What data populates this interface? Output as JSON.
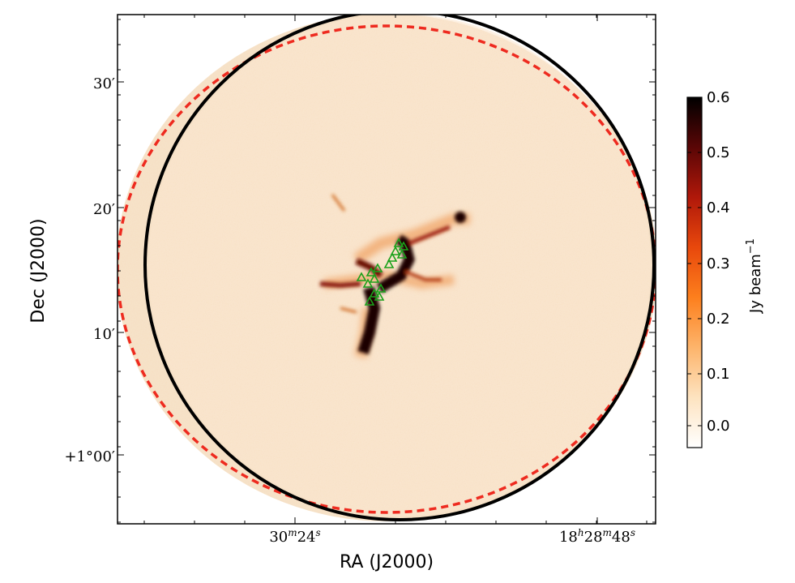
{
  "axes": {
    "xlabel": "RA (J2000)",
    "ylabel": "Dec (J2000)",
    "x_ticks": [
      {
        "label": "30",
        "sup1": "m",
        "mid": "24",
        "sup2": "s"
      },
      {
        "label": "18",
        "sup1": "h",
        "mid": "28",
        "sup2": "m",
        "end": "48",
        "sup3": "s"
      }
    ],
    "y_ticks": [
      "30′",
      "20′",
      "10′",
      "+1°00′"
    ]
  },
  "colorbar": {
    "label": "Jy beam",
    "label_exponent": "−1",
    "ticks": [
      "0.6",
      "0.5",
      "0.4",
      "0.3",
      "0.2",
      "0.1",
      "0.0"
    ],
    "colors": [
      "#ffffff",
      "#fde3c0",
      "#fdb46b",
      "#fd7f1d",
      "#e8480c",
      "#b0180a",
      "#5a0606",
      "#000000"
    ]
  },
  "overlays": {
    "solid_circle_color": "#000000",
    "dashed_circle_color": "#ee2a1f",
    "source_marker_color": "#1aa11a"
  }
}
